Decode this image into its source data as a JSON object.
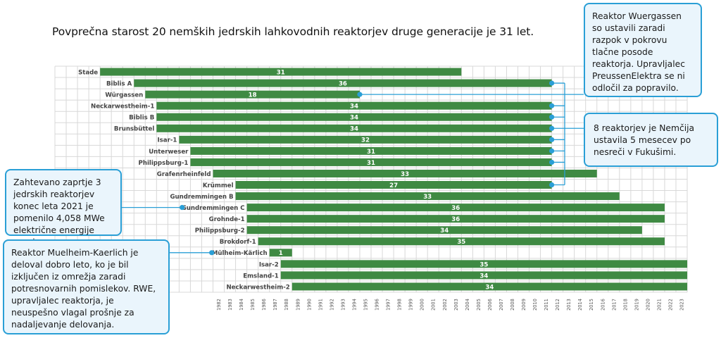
{
  "title": "Povprečna starost 20 nemških jedrskih lahkovodnih reaktorjev druge generacije je 31 let.",
  "annotations": {
    "wuergassen": "Reaktor Wuergassen so ustavili zaradi razpok v pokrovu tlačne posode reaktorja. Upravljalec PreussenElektra se ni odločil za popravilo.",
    "fukushima": "8 reaktorjev je Nemčija ustavila 5 mesecev po nesreči v Fukušimi.",
    "closure2021": "Zahtevano zaprtje 3 jedrskih reaktorjev konec leta 2021 je pomenilo 4,058 MWe električne energije manj.",
    "muelheim": "Reaktor Muelheim-Kaerlich je deloval dobro leto, ko je bil izključen iz omrežja zaradi potresnovarnih pomislekov. RWE, upravljalec reaktorja, je neuspešno vlagal prošnje za nadaljevanje delovanja."
  },
  "colors": {
    "bar": "#3f8a43",
    "callout_border": "#2a9fd6",
    "callout_fill": "#eaf5fc",
    "grid": "#d8d8d8"
  },
  "chart_data": {
    "type": "bar",
    "orientation": "horizontal",
    "x_range": [
      1968,
      2023
    ],
    "x_ticks": [
      "1982",
      "1983",
      "1984",
      "1985",
      "1986",
      "1987",
      "1988",
      "1989",
      "1990",
      "1991",
      "1992",
      "1993",
      "1994",
      "1995",
      "1996",
      "1997",
      "1998",
      "1999",
      "2000",
      "2001",
      "2002",
      "2003",
      "2004",
      "2005",
      "2006",
      "2007",
      "2008",
      "2009",
      "2010",
      "2011",
      "2012",
      "2013",
      "2014",
      "2015",
      "2016",
      "2017",
      "2018",
      "2019",
      "2020",
      "2021",
      "2022",
      "2023"
    ],
    "reactors": [
      {
        "name": "Stade",
        "start": 1972,
        "end": 2003,
        "age": 31
      },
      {
        "name": "Biblis A",
        "start": 1975,
        "end": 2011,
        "age": 36
      },
      {
        "name": "Würgassen",
        "start": 1976,
        "end": 1994,
        "age": 18
      },
      {
        "name": "Neckarwestheim-1",
        "start": 1977,
        "end": 2011,
        "age": 34
      },
      {
        "name": "Biblis B",
        "start": 1977,
        "end": 2011,
        "age": 34
      },
      {
        "name": "Brunsbüttel",
        "start": 1977,
        "end": 2011,
        "age": 34
      },
      {
        "name": "Isar-1",
        "start": 1979,
        "end": 2011,
        "age": 32
      },
      {
        "name": "Unterweser",
        "start": 1980,
        "end": 2011,
        "age": 31
      },
      {
        "name": "Philippsburg-1",
        "start": 1980,
        "end": 2011,
        "age": 31
      },
      {
        "name": "Grafenrheinfeld",
        "start": 1982,
        "end": 2015,
        "age": 33
      },
      {
        "name": "Krümmel",
        "start": 1984,
        "end": 2011,
        "age": 27
      },
      {
        "name": "Gundremmingen B",
        "start": 1984,
        "end": 2017,
        "age": 33
      },
      {
        "name": "Gundremmingen C",
        "start": 1985,
        "end": 2021,
        "age": 36
      },
      {
        "name": "Grohnde-1",
        "start": 1985,
        "end": 2021,
        "age": 36
      },
      {
        "name": "Philippsburg-2",
        "start": 1985,
        "end": 2019,
        "age": 34
      },
      {
        "name": "Brokdorf-1",
        "start": 1986,
        "end": 2021,
        "age": 35
      },
      {
        "name": "Mülheim-Kärlich",
        "start": 1987,
        "end": 1988,
        "age": 1
      },
      {
        "name": "Isar-2",
        "start": 1988,
        "end": 2023,
        "age": 35
      },
      {
        "name": "Emsland-1",
        "start": 1988,
        "end": 2023,
        "age": 34
      },
      {
        "name": "Neckarwestheim-2",
        "start": 1989,
        "end": 2023,
        "age": 34
      }
    ]
  }
}
